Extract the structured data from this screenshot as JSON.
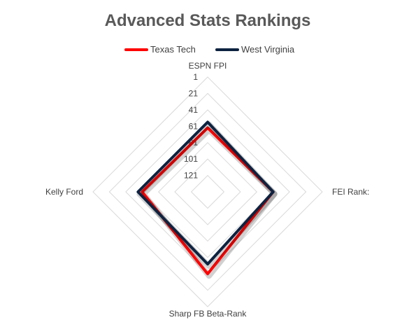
{
  "chart_data": {
    "type": "radar",
    "title": "Advanced Stats Rankings",
    "axes": [
      "ESPN FPI",
      "FEI Rank:",
      "Sharp FB Beta-Rank",
      "Kelly Ford"
    ],
    "scale": {
      "min": 1,
      "max": 141,
      "reversed": true,
      "step": 20
    },
    "ticks": [
      "1",
      "21",
      "41",
      "61",
      "81",
      "101",
      "121"
    ],
    "legend_position": "top",
    "grid": true,
    "series": [
      {
        "name": "Texas Tech",
        "color": "#FF0000",
        "values": [
          63,
          61,
          41,
          61
        ]
      },
      {
        "name": "West Virginia",
        "color": "#0D2240",
        "values": [
          56,
          61,
          53,
          56
        ]
      }
    ]
  }
}
